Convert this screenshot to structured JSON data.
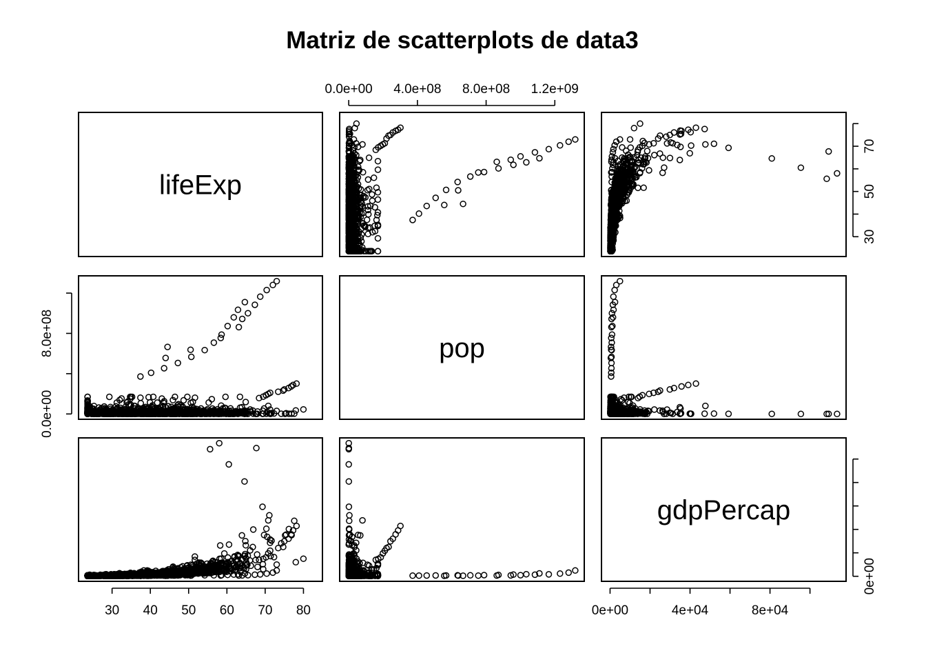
{
  "chart_data": {
    "type": "scatter",
    "title": "Matriz de scatterplots de data3",
    "variables": [
      "lifeExp",
      "pop",
      "gdpPercap"
    ],
    "ranges": {
      "lifeExp": [
        23.6,
        82.6
      ],
      "pop": [
        60011,
        1318683096
      ],
      "gdpPercap": [
        241,
        113523
      ]
    },
    "ticks": {
      "lifeExp": {
        "values": [
          30,
          40,
          50,
          60,
          70,
          80
        ],
        "labels": [
          "30",
          "40",
          "50",
          "60",
          "70",
          "80"
        ],
        "right_labels": [
          "30",
          "50",
          "70"
        ]
      },
      "pop": {
        "values": [
          0,
          400000000,
          800000000,
          1200000000
        ],
        "labels": [
          "0.0e+00",
          "4.0e+08",
          "8.0e+08",
          "1.2e+09"
        ],
        "left_labels": [
          "0.0e+00",
          "8.0e+08"
        ]
      },
      "gdpPercap": {
        "values": [
          0,
          20000,
          40000,
          60000,
          80000,
          100000
        ],
        "labels": [
          "0e+00",
          "",
          "4e+04",
          "",
          "8e+04",
          ""
        ],
        "right_labels": [
          "0e+00",
          "6e+04"
        ]
      }
    },
    "outliers": {
      "lifeExp": [
        28.8,
        30.0,
        31.5,
        35.0,
        36.0,
        37.5,
        39.0,
        40.0,
        42.0,
        44.0,
        45.5,
        46.0,
        48.0,
        49.0,
        52.0,
        53.0,
        58.0,
        62.0,
        65.0,
        68.0,
        73.0,
        78.0,
        80.0
      ],
      "pop": [
        13000000,
        15000000,
        16000000,
        17000000,
        9000000,
        8000000,
        10000000,
        11000000,
        12000000,
        14000000,
        10000000,
        12000000,
        15000000,
        17000000,
        18000000,
        19000000,
        20000000,
        22000000,
        23000000,
        25000000,
        30000000,
        35000000,
        45000000
      ],
      "gdpPercap": [
        450,
        500,
        550,
        600,
        650,
        700,
        800,
        900,
        1000,
        1100,
        1300,
        1500,
        2000,
        2500,
        3000,
        3500,
        4000,
        5000,
        6000,
        8000,
        10000,
        12000,
        15000
      ]
    },
    "china": {
      "lifeExp": [
        44.0,
        50.5,
        44.5,
        58.4,
        63.1,
        64.0,
        65.5,
        67.3,
        68.7,
        70.4,
        72.0,
        73.0
      ],
      "pop": [
        556263527,
        637408000,
        665770000,
        754550000,
        862030000,
        943455000,
        1000281000,
        1084035000,
        1164970000,
        1230075000,
        1280400000,
        1318683096
      ],
      "gdpPercap": [
        400,
        575,
        487,
        613,
        677,
        741,
        962,
        1379,
        1656,
        2289,
        3119,
        4959
      ]
    },
    "india": {
      "lifeExp": [
        37.4,
        40.2,
        43.6,
        47.2,
        50.7,
        54.2,
        56.6,
        58.6,
        60.2,
        61.8,
        62.9,
        64.7
      ],
      "pop": [
        372000000,
        409000000,
        454000000,
        506000000,
        567000000,
        634000000,
        708000000,
        788000000,
        872000000,
        959000000,
        1034172547,
        1110396331
      ],
      "gdpPercap": [
        547,
        590,
        658,
        700,
        724,
        813,
        856,
        977,
        1164,
        1458,
        1747,
        2452
      ]
    },
    "usa": {
      "lifeExp": [
        68.4,
        69.5,
        70.2,
        70.8,
        71.3,
        73.4,
        74.7,
        75.0,
        76.1,
        76.8,
        77.3,
        78.2
      ],
      "pop": [
        157553000,
        171984000,
        186538000,
        198712000,
        209896000,
        220239000,
        232187835,
        242803533,
        256894189,
        272911760,
        287675526,
        301139947
      ],
      "gdpPercap": [
        13990,
        14847,
        16173,
        19530,
        21806,
        24073,
        25009,
        29884,
        32004,
        35767,
        39097,
        42952
      ]
    },
    "kuwait": {
      "lifeExp": [
        55.6,
        58.0,
        60.5,
        64.6,
        67.7,
        69.3,
        71.3,
        74.2,
        75.2,
        76.2,
        76.9,
        77.6
      ],
      "pop": [
        160000,
        212846,
        358266,
        575003,
        841934,
        1140357,
        1497494,
        1891487,
        1418095,
        1765345,
        2111561,
        2505559
      ],
      "gdpPercap": [
        108382,
        113523,
        95458,
        80895,
        109348,
        59265,
        31354,
        28118,
        34933,
        40301,
        35110,
        47307
      ]
    }
  }
}
